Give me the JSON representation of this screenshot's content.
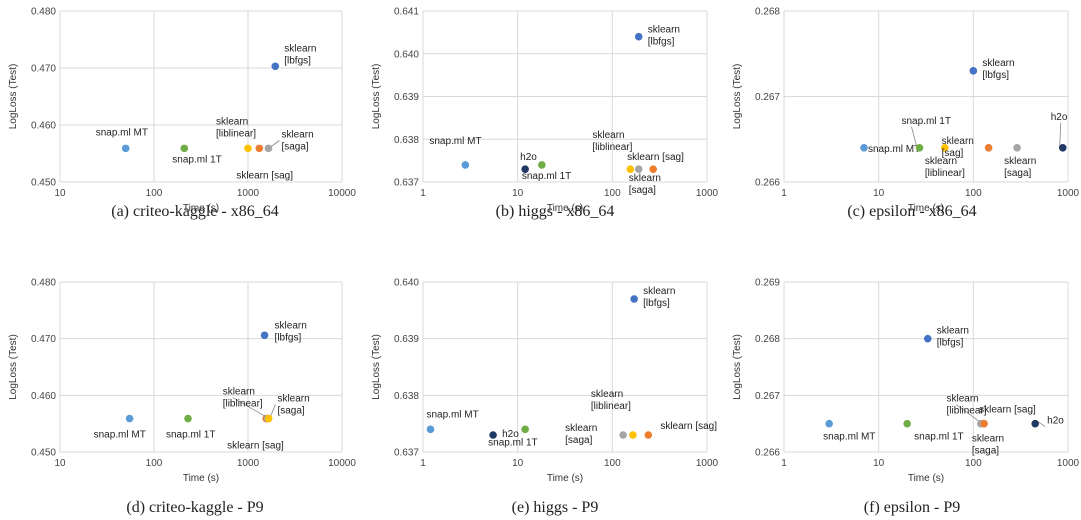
{
  "colors": {
    "snapml_mt": "#5b9bd5",
    "snapml_1t": "#70ad47",
    "h2o": "#203864",
    "liblinear": "#ffc000",
    "sag": "#ed7d31",
    "saga": "#a5a5a5",
    "lbfgs": "#4472c4"
  },
  "chart_data": [
    {
      "type": "scatter",
      "caption": "(a) criteo-kaggle - x86_64",
      "xlabel": "Time (s)",
      "ylabel": "LogLoss (Test)",
      "xscale": "log",
      "xlim": [
        10,
        10000
      ],
      "ylim": [
        0.45,
        0.48
      ],
      "xticks": [
        10,
        100,
        1000,
        10000
      ],
      "xtick_labels": [
        "10",
        "100",
        "1000",
        "10000"
      ],
      "yticks": [
        0.45,
        0.46,
        0.47,
        0.48
      ],
      "ytick_labels": [
        "0.450",
        "0.460",
        "0.470",
        "0.480"
      ],
      "grid": true,
      "points": [
        {
          "label": "snap.ml MT",
          "x": 50,
          "y": 0.4559,
          "color": "#5b9bd5"
        },
        {
          "label": "snap.ml 1T",
          "x": 210,
          "y": 0.4559,
          "color": "#70ad47"
        },
        {
          "label": "sklearn [liblinear]",
          "x": 1000,
          "y": 0.4559,
          "color": "#ffc000"
        },
        {
          "label": "sklearn [sag]",
          "x": 1320,
          "y": 0.4559,
          "color": "#ed7d31"
        },
        {
          "label": "sklearn [saga]",
          "x": 1650,
          "y": 0.4559,
          "color": "#a5a5a5"
        },
        {
          "label": "sklearn [lbfgs]",
          "x": 1950,
          "y": 0.4703,
          "color": "#4472c4"
        }
      ]
    },
    {
      "type": "scatter",
      "caption": "(b) higgs - x86_64",
      "xlabel": "Time (s)",
      "ylabel": "LogLoss (Test)",
      "xscale": "log",
      "xlim": [
        1,
        1000
      ],
      "ylim": [
        0.637,
        0.641
      ],
      "xticks": [
        1,
        10,
        100,
        1000
      ],
      "xtick_labels": [
        "1",
        "10",
        "100",
        "1000"
      ],
      "yticks": [
        0.637,
        0.638,
        0.639,
        0.64,
        0.641
      ],
      "ytick_labels": [
        "0.637",
        "0.638",
        "0.639",
        "0.640",
        "0.641"
      ],
      "grid": true,
      "points": [
        {
          "label": "snap.ml MT",
          "x": 2.8,
          "y": 0.6374,
          "color": "#5b9bd5"
        },
        {
          "label": "h2o",
          "x": 12,
          "y": 0.6373,
          "color": "#203864"
        },
        {
          "label": "snap.ml 1T",
          "x": 18,
          "y": 0.6374,
          "color": "#70ad47"
        },
        {
          "label": "sklearn [liblinear]",
          "x": 155,
          "y": 0.6373,
          "color": "#ffc000"
        },
        {
          "label": "sklearn [saga]",
          "x": 190,
          "y": 0.6373,
          "color": "#a5a5a5"
        },
        {
          "label": "sklearn [sag]",
          "x": 270,
          "y": 0.6373,
          "color": "#ed7d31"
        },
        {
          "label": "sklearn [lbfgs]",
          "x": 190,
          "y": 0.6404,
          "color": "#4472c4"
        }
      ]
    },
    {
      "type": "scatter",
      "caption": "(c) epsilon - x86_64",
      "xlabel": "Time (s)",
      "ylabel": "LogLoss (Test)",
      "xscale": "log",
      "xlim": [
        1,
        1000
      ],
      "ylim": [
        0.266,
        0.268
      ],
      "xticks": [
        1,
        10,
        100,
        1000
      ],
      "xtick_labels": [
        "1",
        "10",
        "100",
        "1000"
      ],
      "yticks": [
        0.266,
        0.267,
        0.268
      ],
      "ytick_labels": [
        "0.266",
        "0.267",
        "0.268"
      ],
      "grid": true,
      "points": [
        {
          "label": "snap.ml MT",
          "x": 7,
          "y": 0.2664,
          "color": "#5b9bd5"
        },
        {
          "label": "snap.ml 1T",
          "x": 27,
          "y": 0.2664,
          "color": "#70ad47"
        },
        {
          "label": "sklearn [liblinear]",
          "x": 50,
          "y": 0.2664,
          "color": "#ffc000"
        },
        {
          "label": "sklearn [sag]",
          "x": 145,
          "y": 0.2664,
          "color": "#ed7d31"
        },
        {
          "label": "sklearn [saga]",
          "x": 290,
          "y": 0.2664,
          "color": "#a5a5a5"
        },
        {
          "label": "h2o",
          "x": 880,
          "y": 0.2664,
          "color": "#203864"
        },
        {
          "label": "sklearn [lbfgs]",
          "x": 100,
          "y": 0.2673,
          "color": "#4472c4"
        }
      ]
    },
    {
      "type": "scatter",
      "caption": "(d) criteo-kaggle - P9",
      "xlabel": "Time (s)",
      "ylabel": "LogLoss (Test)",
      "xscale": "log",
      "xlim": [
        10,
        10000
      ],
      "ylim": [
        0.45,
        0.48
      ],
      "xticks": [
        10,
        100,
        1000,
        10000
      ],
      "xtick_labels": [
        "10",
        "100",
        "1000",
        "10000"
      ],
      "yticks": [
        0.45,
        0.46,
        0.47,
        0.48
      ],
      "ytick_labels": [
        "0.450",
        "0.460",
        "0.470",
        "0.480"
      ],
      "grid": true,
      "points": [
        {
          "label": "snap.ml MT",
          "x": 55,
          "y": 0.4559,
          "color": "#5b9bd5"
        },
        {
          "label": "snap.ml 1T",
          "x": 230,
          "y": 0.4559,
          "color": "#70ad47"
        },
        {
          "label": "sklearn [sag]",
          "x": 1560,
          "y": 0.4559,
          "color": "#ed7d31"
        },
        {
          "label": "sklearn [saga]",
          "x": 1610,
          "y": 0.4559,
          "color": "#a5a5a5"
        },
        {
          "label": "sklearn [liblinear]",
          "x": 1660,
          "y": 0.4559,
          "color": "#ffc000"
        },
        {
          "label": "sklearn [lbfgs]",
          "x": 1500,
          "y": 0.4706,
          "color": "#4472c4"
        }
      ]
    },
    {
      "type": "scatter",
      "caption": "(e) higgs - P9",
      "xlabel": "Time (s)",
      "ylabel": "LogLoss (Test)",
      "xscale": "log",
      "xlim": [
        1,
        1000
      ],
      "ylim": [
        0.637,
        0.64
      ],
      "xticks": [
        1,
        10,
        100,
        1000
      ],
      "xtick_labels": [
        "1",
        "10",
        "100",
        "1000"
      ],
      "yticks": [
        0.637,
        0.638,
        0.639,
        0.64
      ],
      "ytick_labels": [
        "0.637",
        "0.638",
        "0.639",
        "0.640"
      ],
      "grid": true,
      "points": [
        {
          "label": "snap.ml MT",
          "x": 1.2,
          "y": 0.6374,
          "color": "#5b9bd5"
        },
        {
          "label": "h2o",
          "x": 5.5,
          "y": 0.6373,
          "color": "#203864"
        },
        {
          "label": "snap.ml 1T",
          "x": 12,
          "y": 0.6374,
          "color": "#70ad47"
        },
        {
          "label": "sklearn [saga]",
          "x": 130,
          "y": 0.6373,
          "color": "#a5a5a5"
        },
        {
          "label": "sklearn [liblinear]",
          "x": 165,
          "y": 0.6373,
          "color": "#ffc000"
        },
        {
          "label": "sklearn [sag]",
          "x": 240,
          "y": 0.6373,
          "color": "#ed7d31"
        },
        {
          "label": "sklearn [lbfgs]",
          "x": 170,
          "y": 0.6397,
          "color": "#4472c4"
        }
      ]
    },
    {
      "type": "scatter",
      "caption": "(f) epsilon - P9",
      "xlabel": "Time (s)",
      "ylabel": "LogLoss (Test)",
      "xscale": "log",
      "xlim": [
        1,
        1000
      ],
      "ylim": [
        0.266,
        0.269
      ],
      "xticks": [
        1,
        10,
        100,
        1000
      ],
      "xtick_labels": [
        "1",
        "10",
        "100",
        "1000"
      ],
      "yticks": [
        0.266,
        0.267,
        0.268,
        0.269
      ],
      "ytick_labels": [
        "0.266",
        "0.267",
        "0.268",
        "0.269"
      ],
      "grid": true,
      "points": [
        {
          "label": "snap.ml MT",
          "x": 3,
          "y": 0.2665,
          "color": "#5b9bd5"
        },
        {
          "label": "snap.ml 1T",
          "x": 20,
          "y": 0.2665,
          "color": "#70ad47"
        },
        {
          "label": "sklearn [liblinear]",
          "x": 125,
          "y": 0.2665,
          "color": "#ffc000"
        },
        {
          "label": "sklearn [saga]",
          "x": 120,
          "y": 0.2665,
          "color": "#a5a5a5"
        },
        {
          "label": "sklearn [sag]",
          "x": 130,
          "y": 0.2665,
          "color": "#ed7d31"
        },
        {
          "label": "h2o",
          "x": 450,
          "y": 0.2665,
          "color": "#203864"
        },
        {
          "label": "sklearn [lbfgs]",
          "x": 33,
          "y": 0.268,
          "color": "#4472c4"
        }
      ]
    }
  ]
}
